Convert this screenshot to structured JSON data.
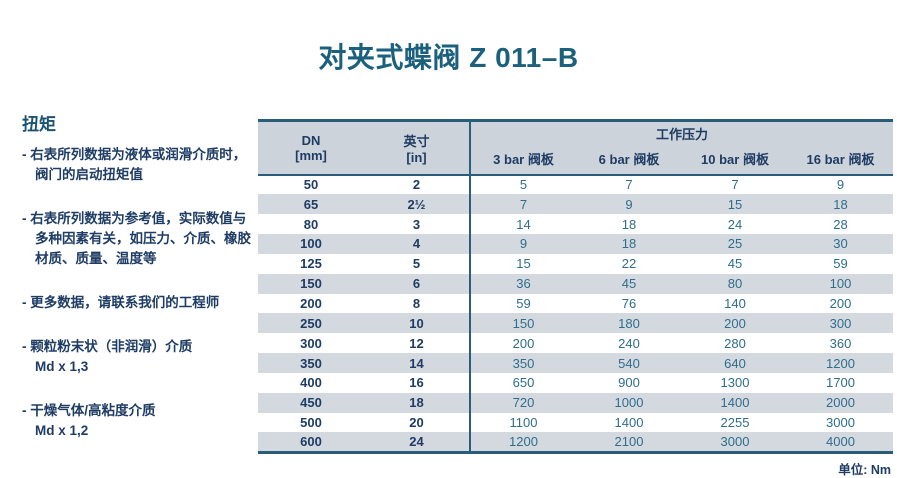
{
  "page": {
    "title": "对夹式蝶阀 Z 011–B",
    "unit_note": "单位: Nm"
  },
  "sidebar": {
    "heading": "扭矩",
    "items": [
      {
        "text": "- 右表所列数据为液体或润滑介质时，阀门的启动扭矩值",
        "sub": ""
      },
      {
        "text": "- 右表所列数据为参考值，实际数值与多种因素有关，如压力、介质、橡胶材质、质量、温度等",
        "sub": ""
      },
      {
        "text": "- 更多数据，请联系我们的工程师",
        "sub": ""
      },
      {
        "text": "- 颗粒粉末状（非润滑）介质",
        "sub": "Md x 1,3"
      },
      {
        "text": "- 干燥气体/高粘度介质",
        "sub": "Md x 1,2"
      }
    ]
  },
  "table": {
    "col_dn_line1": "DN",
    "col_dn_line2": "[mm]",
    "col_inch_line1": "英寸",
    "col_inch_line2": "[in]",
    "group_header": "工作压力",
    "pressure_cols": [
      "3 bar 阀板",
      "6 bar 阀板",
      "10 bar 阀板",
      "16 bar 阀板"
    ],
    "rows": [
      {
        "dn": "50",
        "inch": "2",
        "values": [
          "5",
          "7",
          "7",
          "9"
        ]
      },
      {
        "dn": "65",
        "inch": "2½",
        "values": [
          "7",
          "9",
          "15",
          "18"
        ]
      },
      {
        "dn": "80",
        "inch": "3",
        "values": [
          "14",
          "18",
          "24",
          "28"
        ]
      },
      {
        "dn": "100",
        "inch": "4",
        "values": [
          "9",
          "18",
          "25",
          "30"
        ]
      },
      {
        "dn": "125",
        "inch": "5",
        "values": [
          "15",
          "22",
          "45",
          "59"
        ]
      },
      {
        "dn": "150",
        "inch": "6",
        "values": [
          "36",
          "45",
          "80",
          "100"
        ]
      },
      {
        "dn": "200",
        "inch": "8",
        "values": [
          "59",
          "76",
          "140",
          "200"
        ]
      },
      {
        "dn": "250",
        "inch": "10",
        "values": [
          "150",
          "180",
          "200",
          "300"
        ]
      },
      {
        "dn": "300",
        "inch": "12",
        "values": [
          "200",
          "240",
          "280",
          "360"
        ]
      },
      {
        "dn": "350",
        "inch": "14",
        "values": [
          "350",
          "540",
          "640",
          "1200"
        ]
      },
      {
        "dn": "400",
        "inch": "16",
        "values": [
          "650",
          "900",
          "1300",
          "1700"
        ]
      },
      {
        "dn": "450",
        "inch": "18",
        "values": [
          "720",
          "1000",
          "1400",
          "2000"
        ]
      },
      {
        "dn": "500",
        "inch": "20",
        "values": [
          "1100",
          "1400",
          "2255",
          "3000"
        ]
      },
      {
        "dn": "600",
        "inch": "24",
        "values": [
          "1200",
          "2100",
          "3000",
          "4000"
        ]
      }
    ]
  },
  "colors": {
    "title_teal": "#1b617e",
    "text_navy": "#1e3c64",
    "value_blue": "#2f6d8c",
    "stripe_gray": "#d4d9e0",
    "header_gray": "#cdd3db",
    "border_teal": "#2a5d7c"
  }
}
